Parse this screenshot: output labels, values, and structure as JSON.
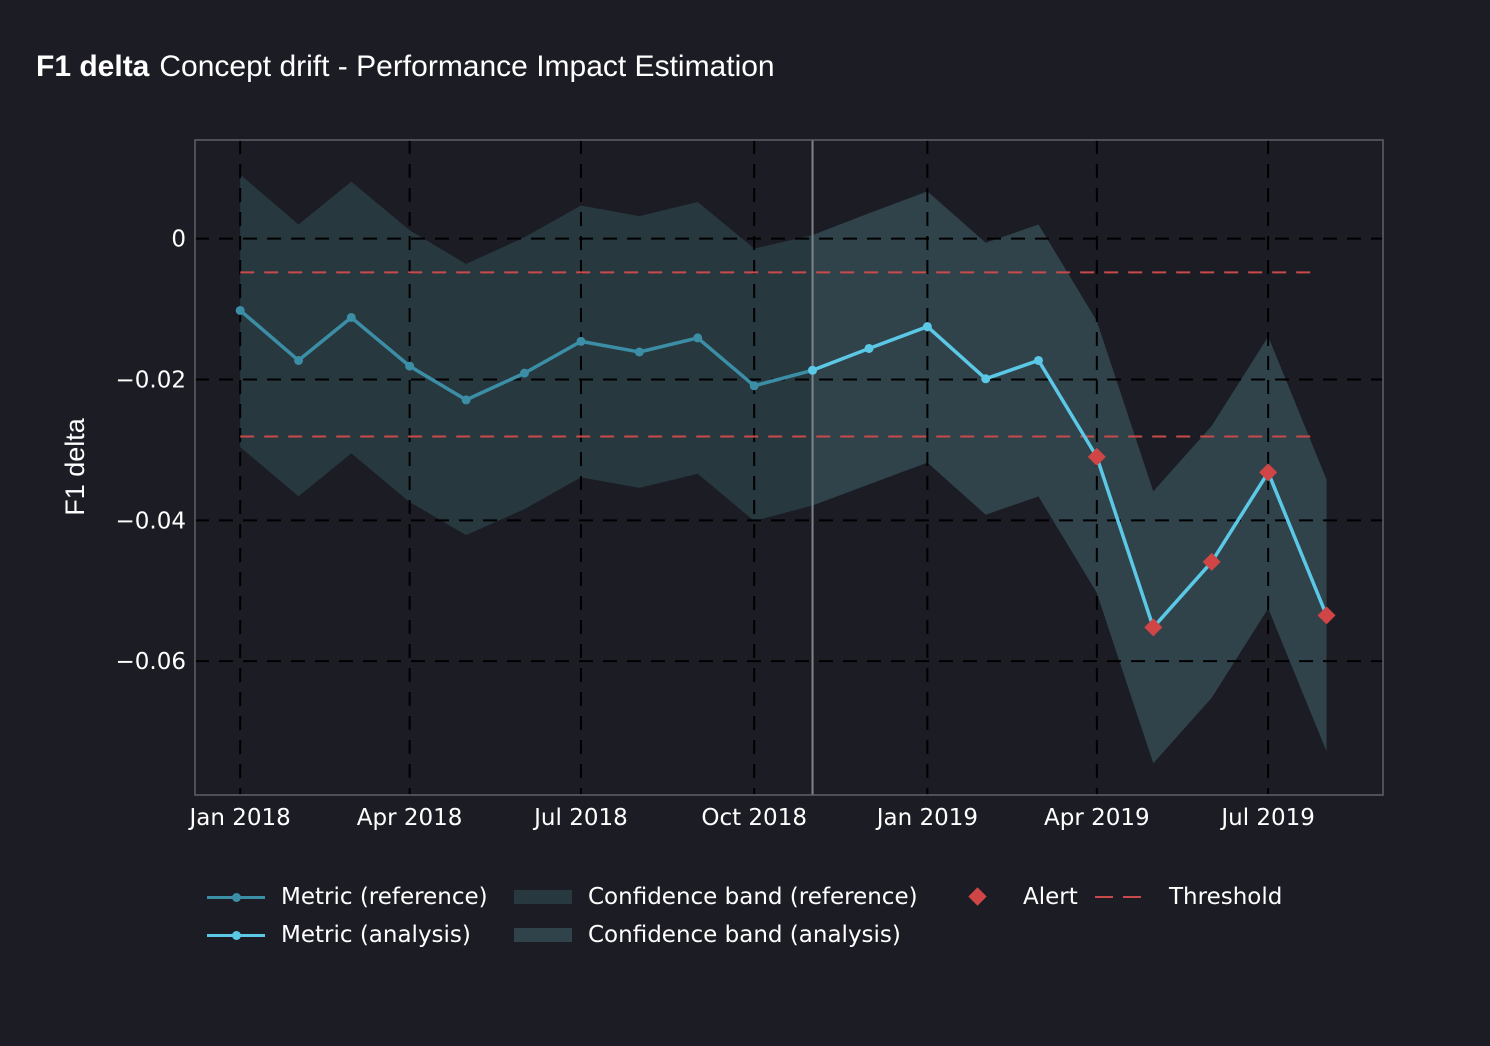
{
  "chart_data": {
    "type": "line",
    "title_bold": "F1 delta",
    "title": "Concept drift - Performance Impact Estimation",
    "ylabel": "F1 delta",
    "xlabel": "",
    "ylim": [
      -0.079,
      0.014
    ],
    "xlim": [
      "2017-12-08",
      "2019-08-31"
    ],
    "yticks": [
      0,
      -0.02,
      -0.04,
      -0.06
    ],
    "ytick_labels": [
      "0",
      "−0.02",
      "−0.04",
      "−0.06"
    ],
    "xticks": [
      "2018-01-01",
      "2018-04-01",
      "2018-07-01",
      "2018-10-01",
      "2019-01-01",
      "2019-04-01",
      "2019-07-01"
    ],
    "xtick_labels": [
      "Jan 2018",
      "Apr 2018",
      "Jul 2018",
      "Oct 2018",
      "Jan 2019",
      "Apr 2019",
      "Jul 2019"
    ],
    "thresholds": {
      "upper": -0.0048,
      "lower": -0.0281
    },
    "reference_end": "2018-11-01",
    "series": [
      {
        "name": "Metric (reference)",
        "x": [
          "2018-01-01",
          "2018-02-01",
          "2018-03-01",
          "2018-04-01",
          "2018-05-01",
          "2018-06-01",
          "2018-07-01",
          "2018-08-01",
          "2018-09-01",
          "2018-10-01",
          "2018-11-01"
        ],
        "y": [
          -0.0102,
          -0.0173,
          -0.0112,
          -0.0181,
          -0.0229,
          -0.0191,
          -0.0146,
          -0.0161,
          -0.0141,
          -0.0209,
          -0.0187
        ],
        "upper": [
          0.0091,
          0.002,
          0.0081,
          0.0012,
          -0.0036,
          0.0002,
          0.0047,
          0.0032,
          0.0052,
          -0.0014,
          0.0005
        ],
        "lower": [
          -0.0296,
          -0.0366,
          -0.0305,
          -0.0374,
          -0.0421,
          -0.0384,
          -0.0339,
          -0.0354,
          -0.0334,
          -0.0401,
          -0.0379
        ],
        "color": "#3b8ea5"
      },
      {
        "name": "Metric (analysis)",
        "x": [
          "2018-11-01",
          "2018-12-01",
          "2019-01-01",
          "2019-02-01",
          "2019-03-01",
          "2019-04-01",
          "2019-05-01",
          "2019-06-01",
          "2019-07-01",
          "2019-08-01"
        ],
        "y": [
          -0.0187,
          -0.0156,
          -0.0125,
          -0.0199,
          -0.0173,
          -0.031,
          -0.0552,
          -0.0459,
          -0.0332,
          -0.0535
        ],
        "upper": [
          0.0005,
          0.0036,
          0.0067,
          -0.0006,
          0.002,
          -0.0117,
          -0.0359,
          -0.0266,
          -0.0139,
          -0.0342
        ],
        "lower": [
          -0.0379,
          -0.0349,
          -0.0318,
          -0.0392,
          -0.0366,
          -0.0503,
          -0.0745,
          -0.0652,
          -0.0525,
          -0.0728
        ],
        "color": "#5bc8e6"
      }
    ],
    "alerts": {
      "x": [
        "2019-04-01",
        "2019-05-01",
        "2019-06-01",
        "2019-07-01",
        "2019-08-01"
      ],
      "y": [
        -0.031,
        -0.0552,
        -0.0459,
        -0.0332,
        -0.0535
      ]
    },
    "colors": {
      "background": "#1c1c24",
      "band_reference": "#27383f",
      "band_analysis": "#30434b",
      "alert": "#d04545",
      "threshold": "#c94a4a",
      "frame": "#5e6269",
      "grid": "#000000",
      "split_line": "#7e848a"
    },
    "grid": true,
    "legend": {
      "position": "bottom",
      "items": [
        {
          "key": "metric_ref",
          "label": "Metric (reference)"
        },
        {
          "key": "metric_ana",
          "label": "Metric (analysis)"
        },
        {
          "key": "band_ref",
          "label": "Confidence band (reference)"
        },
        {
          "key": "band_ana",
          "label": "Confidence band (analysis)"
        },
        {
          "key": "alert",
          "label": "Alert"
        },
        {
          "key": "threshold",
          "label": "Threshold"
        }
      ]
    }
  }
}
